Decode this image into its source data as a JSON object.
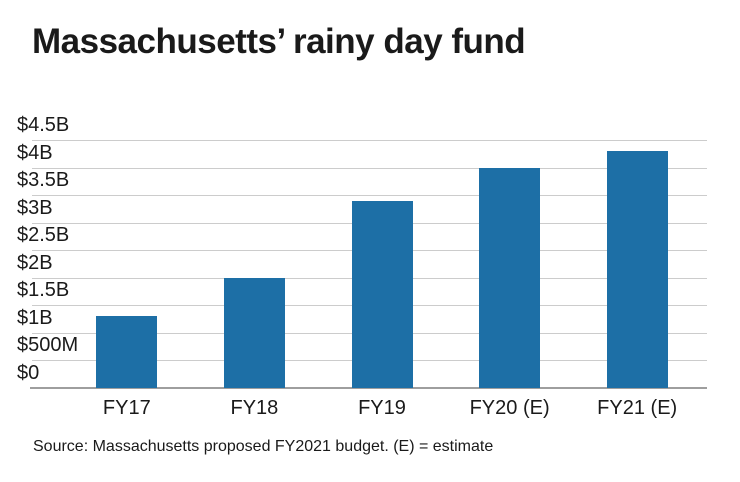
{
  "chart_data": {
    "type": "bar",
    "title": "Massachusetts’ rainy day fund",
    "categories": [
      "FY17",
      "FY18",
      "FY19",
      "FY20 (E)",
      "FY21 (E)"
    ],
    "values": [
      1.3,
      2.0,
      3.4,
      4.0,
      4.3
    ],
    "values_unit": "billions USD",
    "xlabel": "",
    "ylabel": "",
    "ylim": [
      0,
      4.5
    ],
    "grid": true,
    "legend": false,
    "y_ticks": [
      {
        "value": 4.5,
        "label": "$4.5B"
      },
      {
        "value": 4.0,
        "label": "$4B"
      },
      {
        "value": 3.5,
        "label": "$3.5B"
      },
      {
        "value": 3.0,
        "label": "$3B"
      },
      {
        "value": 2.5,
        "label": "$2.5B"
      },
      {
        "value": 2.0,
        "label": "$2B"
      },
      {
        "value": 1.5,
        "label": "$1.5B"
      },
      {
        "value": 1.0,
        "label": "$1B"
      },
      {
        "value": 0.5,
        "label": "$500M"
      },
      {
        "value": 0.0,
        "label": "$0"
      }
    ],
    "source": "Source: Massachusetts proposed FY2021 budget. (E) = estimate",
    "colors": {
      "bar": "#1d6fa6",
      "gridline": "#cccccc",
      "axis": "#9e9e9e",
      "text": "#1a1a1a",
      "background": "#ffffff"
    }
  }
}
